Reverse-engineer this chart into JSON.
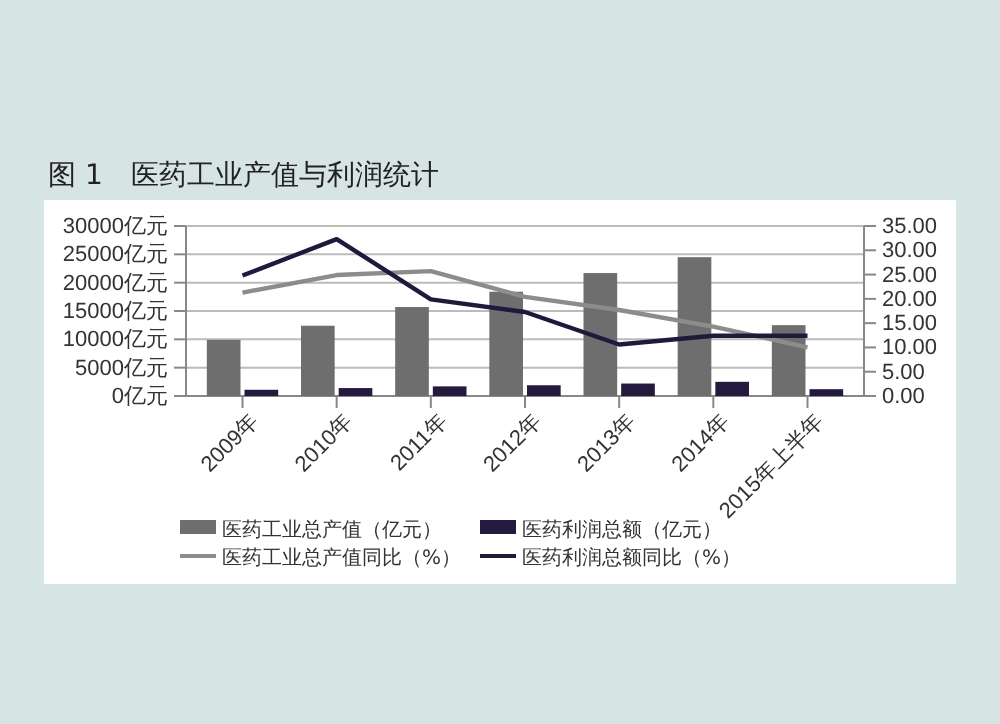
{
  "chart_data": {
    "type": "bar",
    "title": "图 1　医药工业产值与利润统计",
    "categories": [
      "2009年",
      "2010年",
      "2011年",
      "2012年",
      "2013年",
      "2014年",
      "2015年上半年"
    ],
    "series": [
      {
        "name": "医药工业总产值（亿元）",
        "color": "#6e6e6e",
        "values": [
          9900,
          12400,
          15700,
          18400,
          21700,
          24500,
          12500
        ]
      },
      {
        "name": "医药利润总额（亿元）",
        "color": "#241a3e",
        "values": [
          1100,
          1400,
          1700,
          1900,
          2200,
          2500,
          1200
        ]
      },
      {
        "name": "医药工业总产值同比（%）",
        "type": "line",
        "axis": "y2",
        "color": "#8c8c8c",
        "values": [
          21.3,
          24.9,
          25.7,
          20.4,
          17.7,
          14.3,
          10.0
        ]
      },
      {
        "name": "医药利润总额同比（%）",
        "type": "line",
        "axis": "y2",
        "color": "#1e1a3c",
        "values": [
          24.8,
          32.3,
          19.9,
          17.3,
          10.6,
          12.4,
          12.4
        ]
      }
    ],
    "ylim": [
      0,
      30000
    ],
    "yticks": [
      {
        "value": 0,
        "label": "0亿元"
      },
      {
        "value": 5000,
        "label": "5000亿元"
      },
      {
        "value": 10000,
        "label": "10000亿元"
      },
      {
        "value": 15000,
        "label": "15000亿元"
      },
      {
        "value": 20000,
        "label": "20000亿元"
      },
      {
        "value": 25000,
        "label": "25000亿元"
      },
      {
        "value": 30000,
        "label": "30000亿元"
      }
    ],
    "y2lim": [
      0,
      35
    ],
    "y2ticks": [
      {
        "value": 0,
        "label": "0.00"
      },
      {
        "value": 5,
        "label": "5.00"
      },
      {
        "value": 10,
        "label": "10.00"
      },
      {
        "value": 15,
        "label": "15.00"
      },
      {
        "value": 20,
        "label": "20.00"
      },
      {
        "value": 25,
        "label": "25.00"
      },
      {
        "value": 30,
        "label": "30.00"
      },
      {
        "value": 35,
        "label": "35.00"
      }
    ],
    "grid": "y",
    "legend": "bottom",
    "marker": "none",
    "line_style": "solid"
  }
}
